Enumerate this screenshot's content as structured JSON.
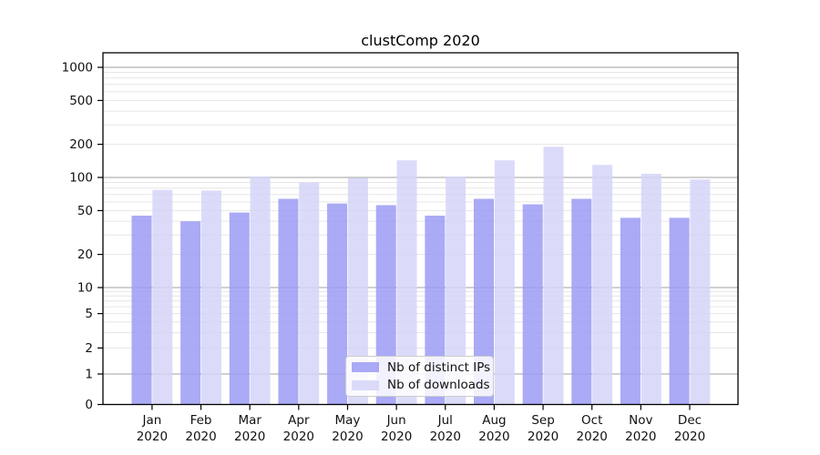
{
  "window": {
    "background": "#ffffff"
  },
  "chart_data": {
    "type": "bar",
    "title": "clustComp 2020",
    "categories": [
      "Jan 2020",
      "Feb 2020",
      "Mar 2020",
      "Apr 2020",
      "May 2020",
      "Jun 2020",
      "Jul 2020",
      "Aug 2020",
      "Sep 2020",
      "Oct 2020",
      "Nov 2020",
      "Dec 2020"
    ],
    "series": [
      {
        "name": "Nb of distinct IPs",
        "color": "#9b9bf4",
        "opacity": 0.85,
        "values": [
          45,
          40,
          48,
          64,
          58,
          56,
          45,
          64,
          57,
          64,
          43,
          43
        ]
      },
      {
        "name": "Nb of downloads",
        "color": "#d5d5f8",
        "opacity": 0.85,
        "values": [
          77,
          76,
          102,
          90,
          99,
          143,
          102,
          143,
          190,
          130,
          108,
          96
        ]
      }
    ],
    "xlabel": "",
    "ylabel": "",
    "yscale": "symlog",
    "ylim": [
      0,
      1000
    ],
    "yticks": [
      0,
      1,
      2,
      5,
      10,
      20,
      50,
      100,
      200,
      500,
      1000
    ],
    "grid": "on",
    "legend_position": "lower center inside plot",
    "colors": {
      "decade_grid": "#b3b3b3",
      "minor_grid": "#e6e6e6",
      "axis_frame": "#000000",
      "tick_label": "#111111"
    }
  }
}
